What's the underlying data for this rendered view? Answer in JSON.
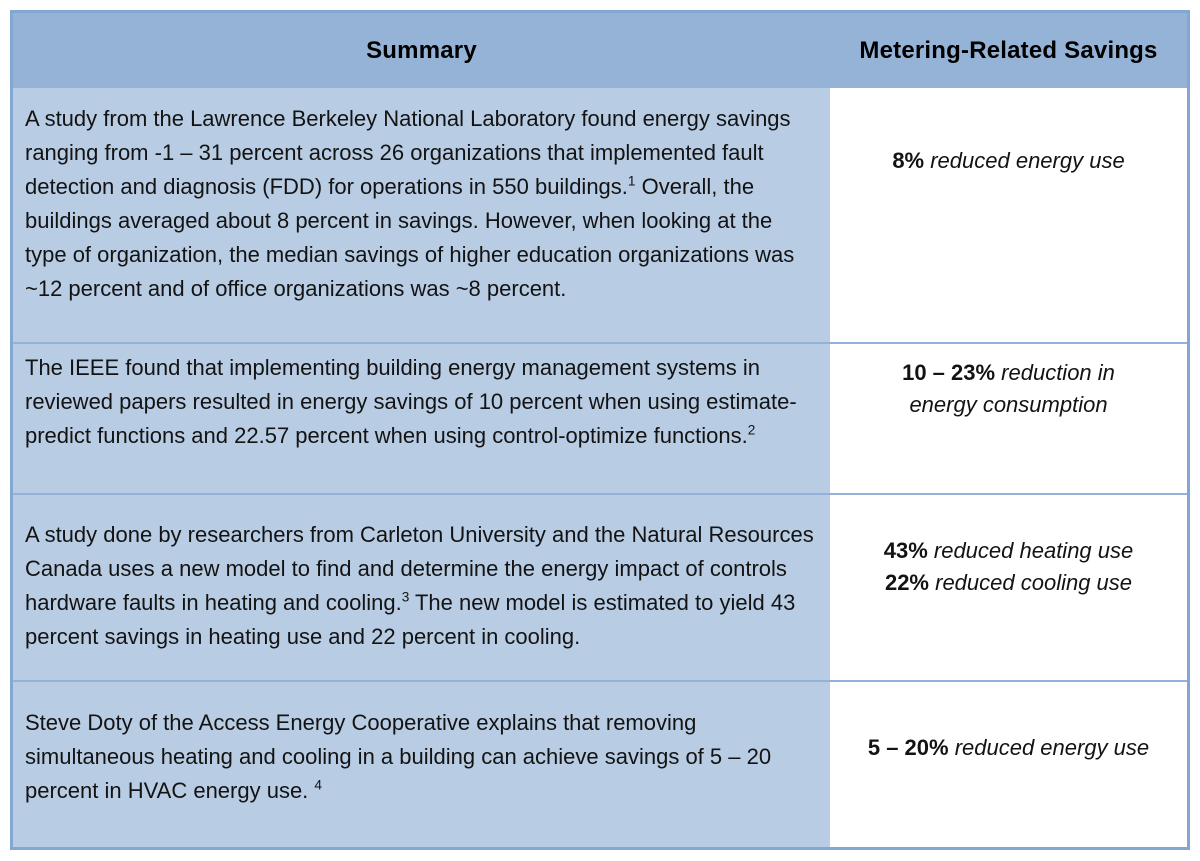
{
  "table": {
    "header": {
      "summary": "Summary",
      "savings": "Metering-Related Savings"
    },
    "rows": [
      {
        "summary_before": "A study from the Lawrence Berkeley National Laboratory found energy savings ranging from -1 – 31 percent across 26 organizations that implemented fault detection and diagnosis (FDD) for operations in 550 buildings.",
        "footnote": "1",
        "summary_after": " Overall, the buildings averaged about 8 percent in savings. However, when looking at the type of organization, the median savings of higher education organizations was ~12 percent and of office organizations was ~8 percent.",
        "savings_lines": [
          {
            "value": "8%",
            "label": " reduced energy use"
          }
        ]
      },
      {
        "summary_before": "The IEEE found that implementing building energy management systems in reviewed papers resulted in energy savings of 10 percent when using estimate-predict functions and 22.57 percent when using control-optimize functions.",
        "footnote": "2",
        "summary_after": "",
        "savings_lines": [
          {
            "value": "10 – 23%",
            "label": " reduction in energy consumption"
          }
        ]
      },
      {
        "summary_before": "A study done by researchers from Carleton University and the Natural Resources Canada uses a new model to find and determine the energy impact of controls hardware faults in heating and cooling.",
        "footnote": "3",
        "summary_after": " The new model is estimated to yield 43 percent savings in heating use and 22 percent in cooling.",
        "savings_lines": [
          {
            "value": "43%",
            "label": " reduced heating use"
          },
          {
            "value": "22%",
            "label": " reduced cooling use"
          }
        ]
      },
      {
        "summary_before": "Steve Doty of the Access Energy Cooperative explains that removing simultaneous heating and cooling in a building can achieve savings of 5 – 20 percent in HVAC energy use. ",
        "footnote": "4",
        "summary_after": "",
        "savings_lines": [
          {
            "value": "5 – 20%",
            "label": " reduced energy use"
          }
        ]
      }
    ]
  },
  "colors": {
    "header_bg": "#95b3d7",
    "summary_cell_bg": "#b8cce4",
    "savings_cell_bg": "#ffffff",
    "outer_border": "#84a7d2",
    "row_divider": "#94b2d9",
    "text": "#131313"
  }
}
